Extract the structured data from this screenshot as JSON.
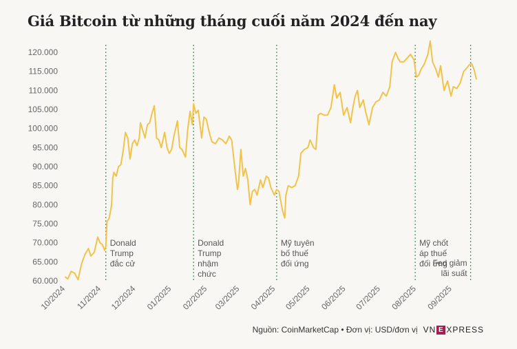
{
  "header": {
    "title": "Giá Bitcoin từ những tháng cuối năm 2024 đến nay"
  },
  "footer": {
    "source": "Nguồn: CoinMarketCap • Đơn vị: USD/đơn vị",
    "logo_left": "VN",
    "logo_box": "E",
    "logo_right": "XPRESS"
  },
  "colors": {
    "line": "#f2c34a",
    "event_line": "#3a9a56",
    "axis_text": "#666666",
    "background": "#f8f7f3"
  },
  "chart_data": {
    "type": "line",
    "title": "Giá Bitcoin từ những tháng cuối năm 2024 đến nay",
    "xlabel": "",
    "ylabel": "",
    "ylim": [
      60000,
      122000
    ],
    "xlim": [
      "2024-10-01",
      "2025-09-22"
    ],
    "y_ticks": [
      "60.000",
      "65.000",
      "70.000",
      "75.000",
      "80.000",
      "85.000",
      "90.000",
      "95.000",
      "100.000",
      "105.000",
      "110.000",
      "115.000",
      "120.000"
    ],
    "x_ticks": [
      {
        "label": "10/2024",
        "date": "2024-10-01"
      },
      {
        "label": "11/2024",
        "date": "2024-11-01"
      },
      {
        "label": "12/2024",
        "date": "2024-12-01"
      },
      {
        "label": "01/2025",
        "date": "2025-01-01"
      },
      {
        "label": "02/2025",
        "date": "2025-02-01"
      },
      {
        "label": "03/2025",
        "date": "2025-03-01"
      },
      {
        "label": "04/2025",
        "date": "2025-04-01"
      },
      {
        "label": "05/2025",
        "date": "2025-05-01"
      },
      {
        "label": "06/2025",
        "date": "2025-06-01"
      },
      {
        "label": "07/2025",
        "date": "2025-07-01"
      },
      {
        "label": "08/2025",
        "date": "2025-08-01"
      },
      {
        "label": "09/2025",
        "date": "2025-09-01"
      }
    ],
    "grid": false,
    "series": [
      {
        "points": [
          [
            "2024-10-01",
            61000
          ],
          [
            "2024-10-03",
            60500
          ],
          [
            "2024-10-06",
            62500
          ],
          [
            "2024-10-09",
            62000
          ],
          [
            "2024-10-12",
            60300
          ],
          [
            "2024-10-15",
            64500
          ],
          [
            "2024-10-18",
            67000
          ],
          [
            "2024-10-21",
            68500
          ],
          [
            "2024-10-23",
            66500
          ],
          [
            "2024-10-26",
            67500
          ],
          [
            "2024-10-29",
            71500
          ],
          [
            "2024-10-31",
            70000
          ],
          [
            "2024-11-02",
            69500
          ],
          [
            "2024-11-04",
            68000
          ],
          [
            "2024-11-05",
            69000
          ],
          [
            "2024-11-06",
            75500
          ],
          [
            "2024-11-08",
            76500
          ],
          [
            "2024-11-10",
            80000
          ],
          [
            "2024-11-11",
            87000
          ],
          [
            "2024-11-12",
            88500
          ],
          [
            "2024-11-14",
            87500
          ],
          [
            "2024-11-16",
            90000
          ],
          [
            "2024-11-18",
            90500
          ],
          [
            "2024-11-20",
            94000
          ],
          [
            "2024-11-22",
            99000
          ],
          [
            "2024-11-24",
            97500
          ],
          [
            "2024-11-26",
            92000
          ],
          [
            "2024-11-28",
            96000
          ],
          [
            "2024-11-30",
            97000
          ],
          [
            "2024-12-02",
            95500
          ],
          [
            "2024-12-04",
            97500
          ],
          [
            "2024-12-05",
            101500
          ],
          [
            "2024-12-07",
            99500
          ],
          [
            "2024-12-09",
            97500
          ],
          [
            "2024-12-11",
            101000
          ],
          [
            "2024-12-13",
            101500
          ],
          [
            "2024-12-15",
            104000
          ],
          [
            "2024-12-17",
            106000
          ],
          [
            "2024-12-19",
            97500
          ],
          [
            "2024-12-21",
            97000
          ],
          [
            "2024-12-23",
            95000
          ],
          [
            "2024-12-26",
            99000
          ],
          [
            "2024-12-28",
            95000
          ],
          [
            "2024-12-30",
            93500
          ],
          [
            "2025-01-01",
            94500
          ],
          [
            "2025-01-03",
            98000
          ],
          [
            "2025-01-06",
            102000
          ],
          [
            "2025-01-08",
            95000
          ],
          [
            "2025-01-10",
            94500
          ],
          [
            "2025-01-13",
            92500
          ],
          [
            "2025-01-15",
            100000
          ],
          [
            "2025-01-17",
            104500
          ],
          [
            "2025-01-19",
            101000
          ],
          [
            "2025-01-20",
            106500
          ],
          [
            "2025-01-22",
            104000
          ],
          [
            "2025-01-24",
            104800
          ],
          [
            "2025-01-27",
            97500
          ],
          [
            "2025-01-29",
            103000
          ],
          [
            "2025-01-31",
            102500
          ],
          [
            "2025-02-03",
            98500
          ],
          [
            "2025-02-05",
            96500
          ],
          [
            "2025-02-08",
            96000
          ],
          [
            "2025-02-11",
            97500
          ],
          [
            "2025-02-14",
            97000
          ],
          [
            "2025-02-17",
            96000
          ],
          [
            "2025-02-20",
            98000
          ],
          [
            "2025-02-22",
            97000
          ],
          [
            "2025-02-25",
            89000
          ],
          [
            "2025-02-27",
            84000
          ],
          [
            "2025-02-28",
            85500
          ],
          [
            "2025-03-02",
            94500
          ],
          [
            "2025-03-04",
            87500
          ],
          [
            "2025-03-06",
            89500
          ],
          [
            "2025-03-08",
            86500
          ],
          [
            "2025-03-10",
            80000
          ],
          [
            "2025-03-12",
            83500
          ],
          [
            "2025-03-14",
            84000
          ],
          [
            "2025-03-16",
            82500
          ],
          [
            "2025-03-19",
            86500
          ],
          [
            "2025-03-21",
            84500
          ],
          [
            "2025-03-24",
            87500
          ],
          [
            "2025-03-26",
            87000
          ],
          [
            "2025-03-28",
            84500
          ],
          [
            "2025-03-31",
            82500
          ],
          [
            "2025-04-02",
            84000
          ],
          [
            "2025-04-04",
            83500
          ],
          [
            "2025-04-07",
            78500
          ],
          [
            "2025-04-09",
            76500
          ],
          [
            "2025-04-10",
            82500
          ],
          [
            "2025-04-12",
            85000
          ],
          [
            "2025-04-15",
            84500
          ],
          [
            "2025-04-18",
            85000
          ],
          [
            "2025-04-21",
            87500
          ],
          [
            "2025-04-23",
            93500
          ],
          [
            "2025-04-26",
            94500
          ],
          [
            "2025-04-29",
            95000
          ],
          [
            "2025-05-01",
            97000
          ],
          [
            "2025-05-04",
            95000
          ],
          [
            "2025-05-06",
            94500
          ],
          [
            "2025-05-08",
            103500
          ],
          [
            "2025-05-10",
            104000
          ],
          [
            "2025-05-13",
            103500
          ],
          [
            "2025-05-16",
            103500
          ],
          [
            "2025-05-19",
            105500
          ],
          [
            "2025-05-22",
            111500
          ],
          [
            "2025-05-24",
            108000
          ],
          [
            "2025-05-27",
            109500
          ],
          [
            "2025-05-30",
            103500
          ],
          [
            "2025-06-02",
            105500
          ],
          [
            "2025-06-05",
            101500
          ],
          [
            "2025-06-07",
            105500
          ],
          [
            "2025-06-09",
            108500
          ],
          [
            "2025-06-11",
            110000
          ],
          [
            "2025-06-13",
            105500
          ],
          [
            "2025-06-16",
            107500
          ],
          [
            "2025-06-18",
            104500
          ],
          [
            "2025-06-21",
            101000
          ],
          [
            "2025-06-24",
            105500
          ],
          [
            "2025-06-27",
            107000
          ],
          [
            "2025-06-30",
            107500
          ],
          [
            "2025-07-03",
            109500
          ],
          [
            "2025-07-06",
            108500
          ],
          [
            "2025-07-09",
            111000
          ],
          [
            "2025-07-11",
            117500
          ],
          [
            "2025-07-14",
            120000
          ],
          [
            "2025-07-16",
            118500
          ],
          [
            "2025-07-18",
            117500
          ],
          [
            "2025-07-21",
            117500
          ],
          [
            "2025-07-24",
            118500
          ],
          [
            "2025-07-27",
            119500
          ],
          [
            "2025-07-30",
            118000
          ],
          [
            "2025-08-01",
            113500
          ],
          [
            "2025-08-03",
            114000
          ],
          [
            "2025-08-05",
            115500
          ],
          [
            "2025-08-08",
            117000
          ],
          [
            "2025-08-11",
            119500
          ],
          [
            "2025-08-13",
            123000
          ],
          [
            "2025-08-15",
            117500
          ],
          [
            "2025-08-18",
            115500
          ],
          [
            "2025-08-20",
            113500
          ],
          [
            "2025-08-22",
            116500
          ],
          [
            "2025-08-25",
            110000
          ],
          [
            "2025-08-28",
            112500
          ],
          [
            "2025-08-31",
            108500
          ],
          [
            "2025-09-02",
            111000
          ],
          [
            "2025-09-05",
            110500
          ],
          [
            "2025-09-08",
            112000
          ],
          [
            "2025-09-11",
            115000
          ],
          [
            "2025-09-14",
            116000
          ],
          [
            "2025-09-16",
            116800
          ],
          [
            "2025-09-18",
            117000
          ],
          [
            "2025-09-20",
            115500
          ],
          [
            "2025-09-22",
            113000
          ]
        ]
      }
    ],
    "annotations": [
      {
        "date": "2024-11-05",
        "lines": [
          "Donald",
          "Trump",
          "đắc cử"
        ]
      },
      {
        "date": "2025-01-20",
        "lines": [
          "Donald",
          "Trump",
          "nhậm",
          "chức"
        ]
      },
      {
        "date": "2025-04-02",
        "lines": [
          "Mỹ tuyên",
          "bố thuế",
          "đối ứng"
        ]
      },
      {
        "date": "2025-07-31",
        "lines": [
          "Mỹ chốt",
          "áp thuế",
          "đối ứng"
        ]
      },
      {
        "date": "2025-09-17",
        "lines": [
          "Fed giảm",
          "lãi suất"
        ],
        "align": "end"
      }
    ]
  }
}
